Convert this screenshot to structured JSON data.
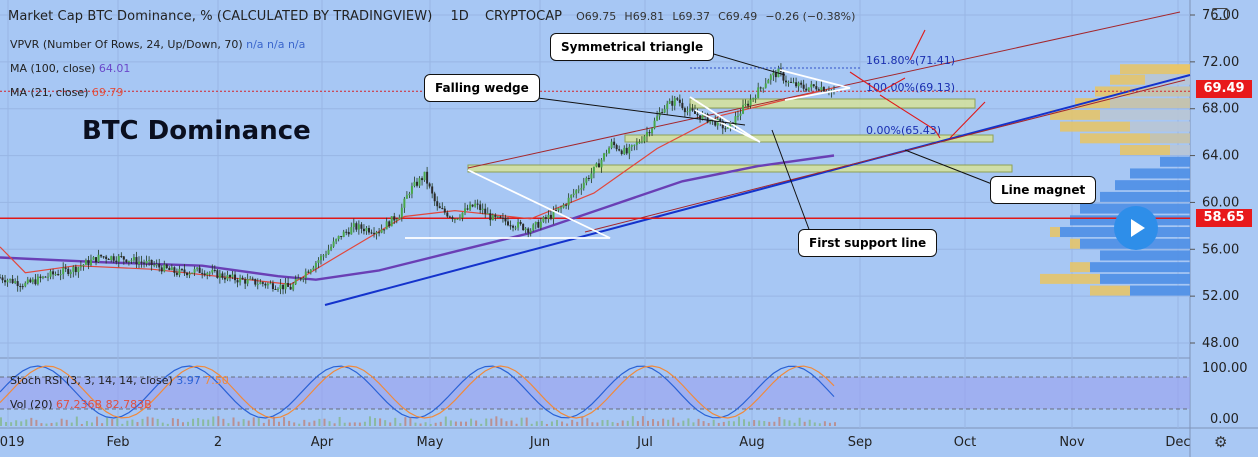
{
  "header": {
    "title": "Market Cap BTC Dominance, % (CALCULATED BY TRADINGVIEW)",
    "interval": "1D",
    "exchange": "CRYPTOCAP",
    "open": "O69.75",
    "high": "H69.81",
    "low": "L69.37",
    "close": "C69.49",
    "change": "−0.26 (−0.38%)"
  },
  "indicators": {
    "vpvr_label": "VPVR (Number Of Rows, 24, Up/Down, 70)",
    "vpvr_vals": "n/a  n/a  n/a",
    "ma100_label": "MA (100, close)",
    "ma100_val": "64.01",
    "ma21_label": "MA (21, close)",
    "ma21_val": "69.79"
  },
  "overlay_title": "BTC Dominance",
  "callouts": {
    "symmetrical": "Symmetrical triangle",
    "falling": "Falling wedge",
    "magnet": "Line magnet",
    "support": "First support line"
  },
  "fib": {
    "f161": "161.80%(71.41)",
    "f100": "100.00%(69.13)",
    "f0": "0.00%(65.43)"
  },
  "price_badges": {
    "current": "69.49",
    "level": "58.65"
  },
  "sub_pane": {
    "stoch_label": "Stoch RSI (3, 3, 14, 14, close)",
    "stoch_k": "3.97",
    "stoch_d": "7.50",
    "vol_label": "Vol (20)",
    "vol_a": "67.236B",
    "vol_b": "82.783B",
    "axis_top": "100.00",
    "axis_bottom": "0.00"
  },
  "chart_data": {
    "type": "candlestick",
    "title": "Market Cap BTC Dominance, % (CALCULATED BY TRADINGVIEW)",
    "y_ticks": [
      "76.00",
      "72.00",
      "68.00",
      "64.00",
      "60.00",
      "56.00",
      "52.00",
      "48.00"
    ],
    "ylim": [
      45,
      77
    ],
    "x_ticks": [
      "2019",
      "Feb",
      "2",
      "Apr",
      "May",
      "Jun",
      "Jul",
      "Aug",
      "Sep",
      "Oct",
      "Nov",
      "Dec"
    ],
    "close_path": [
      [
        0,
        53.6
      ],
      [
        10,
        53.0
      ],
      [
        20,
        53.8
      ],
      [
        30,
        54.4
      ],
      [
        40,
        55.4
      ],
      [
        50,
        55.2
      ],
      [
        60,
        54.7
      ],
      [
        70,
        54.0
      ],
      [
        80,
        54.2
      ],
      [
        90,
        53.6
      ],
      [
        100,
        53.2
      ],
      [
        110,
        52.9
      ],
      [
        115,
        52.7
      ],
      [
        122,
        54.3
      ],
      [
        128,
        55.5
      ],
      [
        135,
        57.2
      ],
      [
        140,
        57.9
      ],
      [
        150,
        57.6
      ],
      [
        158,
        59.0
      ],
      [
        162,
        61.0
      ],
      [
        168,
        62.3
      ],
      [
        173,
        59.5
      ],
      [
        180,
        58.7
      ],
      [
        188,
        59.8
      ],
      [
        195,
        58.6
      ],
      [
        200,
        58.4
      ],
      [
        210,
        57.7
      ],
      [
        218,
        58.9
      ],
      [
        222,
        59.5
      ],
      [
        228,
        61.0
      ],
      [
        236,
        63.0
      ],
      [
        242,
        65.0
      ],
      [
        248,
        64.2
      ],
      [
        252,
        65.0
      ],
      [
        258,
        66.5
      ],
      [
        262,
        68.0
      ],
      [
        268,
        68.8
      ],
      [
        272,
        67.8
      ],
      [
        278,
        67.3
      ],
      [
        284,
        66.8
      ],
      [
        288,
        66.2
      ],
      [
        292,
        67.5
      ],
      [
        298,
        69.0
      ],
      [
        304,
        70.6
      ],
      [
        308,
        71.1
      ],
      [
        312,
        70.2
      ],
      [
        318,
        69.8
      ],
      [
        324,
        69.9
      ],
      [
        330,
        69.5
      ]
    ],
    "ma100": [
      [
        0,
        55.3
      ],
      [
        40,
        54.9
      ],
      [
        80,
        54.6
      ],
      [
        110,
        53.7
      ],
      [
        125,
        53.4
      ],
      [
        150,
        54.2
      ],
      [
        180,
        55.8
      ],
      [
        210,
        57.4
      ],
      [
        240,
        59.6
      ],
      [
        270,
        61.8
      ],
      [
        300,
        63.1
      ],
      [
        330,
        64.01
      ]
    ],
    "ma21": [
      [
        0,
        56.2
      ],
      [
        10,
        54.0
      ],
      [
        30,
        54.6
      ],
      [
        60,
        54.3
      ],
      [
        90,
        53.6
      ],
      [
        115,
        53.0
      ],
      [
        135,
        55.6
      ],
      [
        160,
        58.8
      ],
      [
        180,
        59.3
      ],
      [
        210,
        58.6
      ],
      [
        235,
        60.8
      ],
      [
        260,
        64.6
      ],
      [
        285,
        67.4
      ],
      [
        300,
        68.2
      ],
      [
        330,
        69.79
      ]
    ],
    "horizontal_levels": [
      {
        "name": "current",
        "value": 69.49
      },
      {
        "name": "support",
        "value": 58.65
      }
    ],
    "fib_levels": [
      71.41,
      69.13,
      65.43
    ],
    "stoch_rsi": {
      "k": 3.97,
      "d": 7.5
    },
    "volume": {
      "a": "67.236B",
      "b": "82.783B"
    }
  }
}
